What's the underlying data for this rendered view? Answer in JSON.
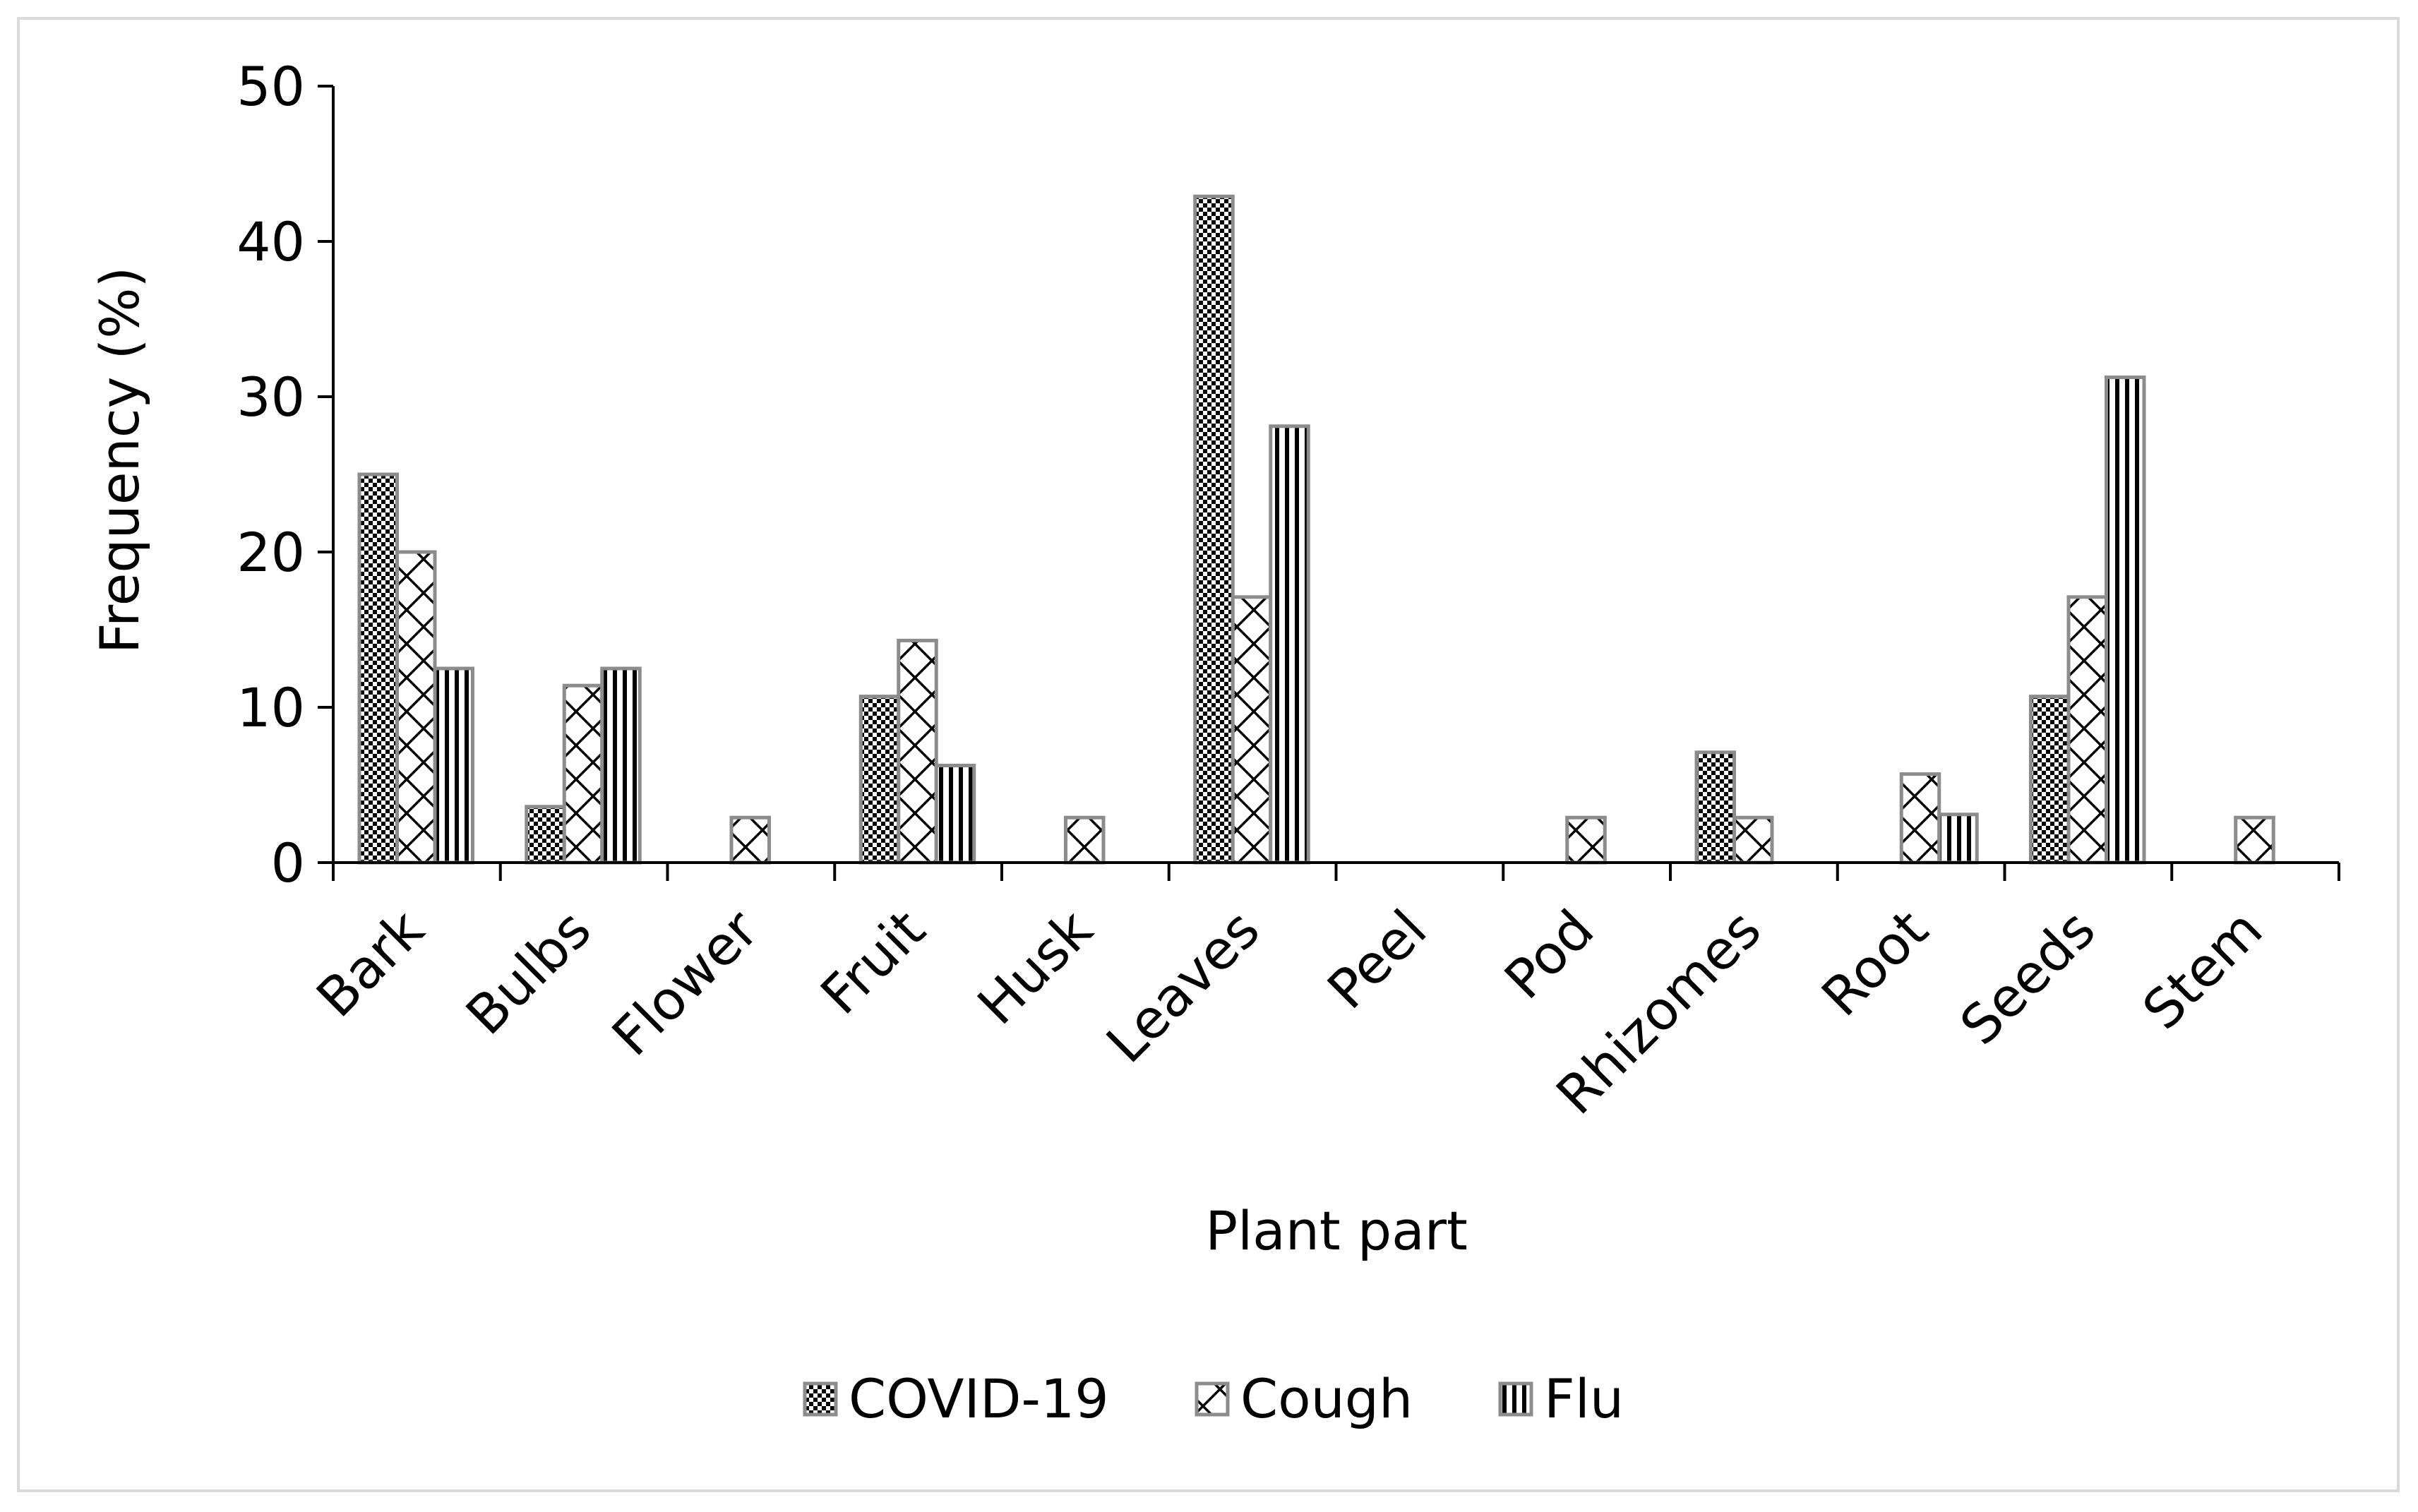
{
  "chart_data": {
    "type": "bar",
    "title": "",
    "xlabel": "Plant part",
    "ylabel": "Frequency (%)",
    "ylim": [
      0,
      50
    ],
    "yticks": [
      "0",
      "10",
      "20",
      "30",
      "40",
      "50"
    ],
    "grid": false,
    "legend_position": "bottom",
    "categories": [
      "Bark",
      "Bulbs",
      "Flower",
      "Fruit",
      "Husk",
      "Leaves",
      "Peel",
      "Pod",
      "Rhizomes",
      "Root",
      "Seeds",
      "Stem"
    ],
    "series": [
      {
        "name": "COVID-19",
        "pattern": "checker",
        "values": [
          25,
          3.6,
          0,
          10.7,
          0,
          42.9,
          0,
          0,
          7.1,
          0,
          10.7,
          0
        ]
      },
      {
        "name": "Cough",
        "pattern": "cross",
        "values": [
          20,
          11.4,
          2.9,
          14.3,
          2.9,
          17.1,
          0,
          2.9,
          2.9,
          5.7,
          17.1,
          2.9
        ]
      },
      {
        "name": "Flu",
        "pattern": "vertical",
        "values": [
          12.5,
          12.5,
          0,
          6.25,
          0,
          28.1,
          0,
          0,
          0,
          3.1,
          31.25,
          0
        ]
      }
    ],
    "colors": {
      "axis": "#000000",
      "bar_border": "#8c8c8c",
      "pattern_ink": "#000000",
      "frame": "#d9d9d9"
    }
  }
}
